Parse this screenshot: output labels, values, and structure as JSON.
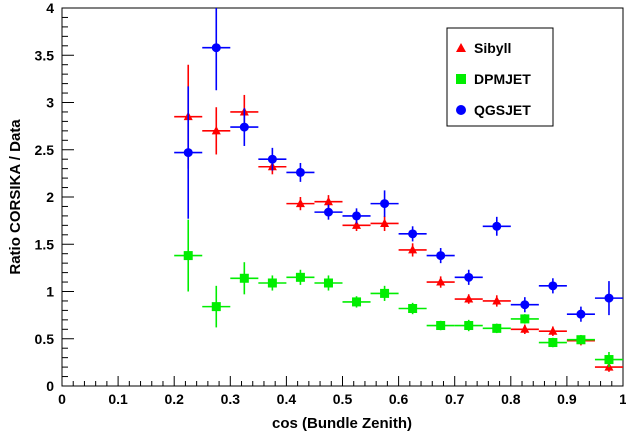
{
  "chart_data": {
    "type": "scatter",
    "xlabel": "cos (Bundle Zenith)",
    "ylabel": "Ratio CORSIKA / Data",
    "xlim": [
      0,
      1
    ],
    "ylim": [
      0,
      4
    ],
    "x_ticks": [
      "0",
      "0.1",
      "0.2",
      "0.3",
      "0.4",
      "0.5",
      "0.6",
      "0.7",
      "0.8",
      "0.9",
      "1"
    ],
    "y_ticks": [
      "0",
      "0.5",
      "1",
      "1.5",
      "2",
      "2.5",
      "3",
      "3.5",
      "4"
    ],
    "grid": false,
    "legend_position": "top-right",
    "x_bin_halfwidth": 0.025,
    "series": [
      {
        "name": "Sibyll",
        "color": "#ff0000",
        "marker": "triangle",
        "x": [
          0.225,
          0.275,
          0.325,
          0.375,
          0.425,
          0.475,
          0.525,
          0.575,
          0.625,
          0.675,
          0.725,
          0.775,
          0.825,
          0.875,
          0.925,
          0.975
        ],
        "y": [
          2.85,
          2.7,
          2.9,
          2.32,
          1.93,
          1.95,
          1.7,
          1.72,
          1.44,
          1.1,
          0.92,
          0.9,
          0.6,
          0.58,
          0.48,
          0.2
        ],
        "yerr": [
          0.55,
          0.25,
          0.18,
          0.08,
          0.07,
          0.07,
          0.06,
          0.08,
          0.07,
          0.06,
          0.05,
          0.06,
          0.05,
          0.05,
          0.05,
          0.05
        ]
      },
      {
        "name": "DPMJET",
        "color": "#00ee00",
        "marker": "square",
        "x": [
          0.225,
          0.275,
          0.325,
          0.375,
          0.425,
          0.475,
          0.525,
          0.575,
          0.625,
          0.675,
          0.725,
          0.775,
          0.825,
          0.875,
          0.925,
          0.975
        ],
        "y": [
          1.38,
          0.84,
          1.14,
          1.09,
          1.15,
          1.09,
          0.89,
          0.98,
          0.82,
          0.64,
          0.64,
          0.61,
          0.71,
          0.46,
          0.49,
          0.28
        ],
        "yerr": [
          0.38,
          0.22,
          0.17,
          0.08,
          0.08,
          0.08,
          0.06,
          0.08,
          0.06,
          0.05,
          0.06,
          0.05,
          0.05,
          0.05,
          0.05,
          0.08
        ]
      },
      {
        "name": "QGSJET",
        "color": "#0000ff",
        "marker": "circle",
        "x": [
          0.225,
          0.275,
          0.325,
          0.375,
          0.425,
          0.475,
          0.525,
          0.575,
          0.625,
          0.675,
          0.725,
          0.775,
          0.825,
          0.875,
          0.925,
          0.975
        ],
        "y": [
          2.47,
          3.58,
          2.74,
          2.4,
          2.26,
          1.84,
          1.8,
          1.93,
          1.61,
          1.38,
          1.15,
          1.69,
          0.86,
          1.06,
          0.76,
          0.93
        ],
        "yerr": [
          0.7,
          0.45,
          0.2,
          0.12,
          0.1,
          0.08,
          0.08,
          0.14,
          0.08,
          0.08,
          0.08,
          0.1,
          0.08,
          0.08,
          0.08,
          0.18
        ]
      }
    ]
  }
}
